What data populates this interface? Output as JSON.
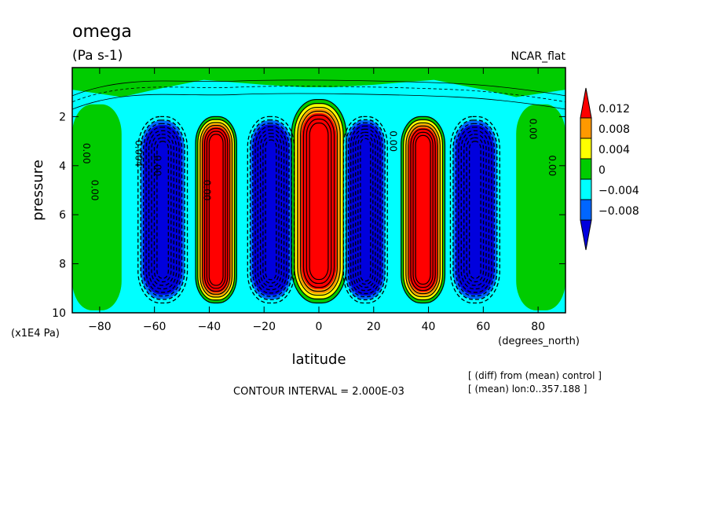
{
  "chart_data": {
    "type": "heatmap",
    "title": "omega",
    "units": "(Pa s-1)",
    "dataset": "NCAR_flat",
    "xlabel": "latitude",
    "xunits": "(degrees_north)",
    "ylabel": "pressure",
    "yunits": "(x1E4 Pa)",
    "xlim": [
      -90,
      90
    ],
    "ylim": [
      0,
      10
    ],
    "y_reversed": true,
    "x_ticks": [
      "-80",
      "-60",
      "-40",
      "-20",
      "0",
      "20",
      "40",
      "60",
      "80"
    ],
    "y_ticks": [
      "2",
      "4",
      "6",
      "8",
      "10"
    ],
    "contour_interval": "CONTOUR INTERVAL = 2.000E-03",
    "notes": [
      "[ (diff) from (mean) control ]",
      "[ (mean) lon:0..357.188 ]"
    ],
    "colorbar": {
      "levels": [
        "0.012",
        "0.008",
        "0.004",
        "0",
        "−0.004",
        "−0.008"
      ],
      "colors": [
        "#ff0000",
        "#ff9900",
        "#ffff00",
        "#00cc00",
        "#00ffff",
        "#0066ff",
        "#0000dd"
      ]
    },
    "contour_labels": [
      "0.00",
      "0.00",
      "0.004",
      "0.00",
      "0.00",
      "0.00",
      "0.00",
      "0.00"
    ],
    "regions": [
      {
        "band": "background",
        "lat": [
          -90,
          90
        ],
        "level": -0.002
      },
      {
        "band": "polar-south",
        "lat": [
          -90,
          -72
        ],
        "level": 0.002
      },
      {
        "band": "polar-north",
        "lat": [
          72,
          90
        ],
        "level": 0.002
      },
      {
        "band": "south-blue",
        "lat": [
          -66,
          -48
        ],
        "level": -0.008
      },
      {
        "band": "south-red",
        "lat": [
          -45,
          -30
        ],
        "level": 0.012
      },
      {
        "band": "south-inner-blue",
        "lat": [
          -26,
          -9
        ],
        "level": -0.008
      },
      {
        "band": "equator-red",
        "lat": [
          -10,
          10
        ],
        "level": 0.012
      },
      {
        "band": "north-inner-blue",
        "lat": [
          9,
          25
        ],
        "level": -0.008
      },
      {
        "band": "north-red",
        "lat": [
          30,
          46
        ],
        "level": 0.012
      },
      {
        "band": "north-blue",
        "lat": [
          48,
          66
        ],
        "level": -0.008
      }
    ]
  }
}
